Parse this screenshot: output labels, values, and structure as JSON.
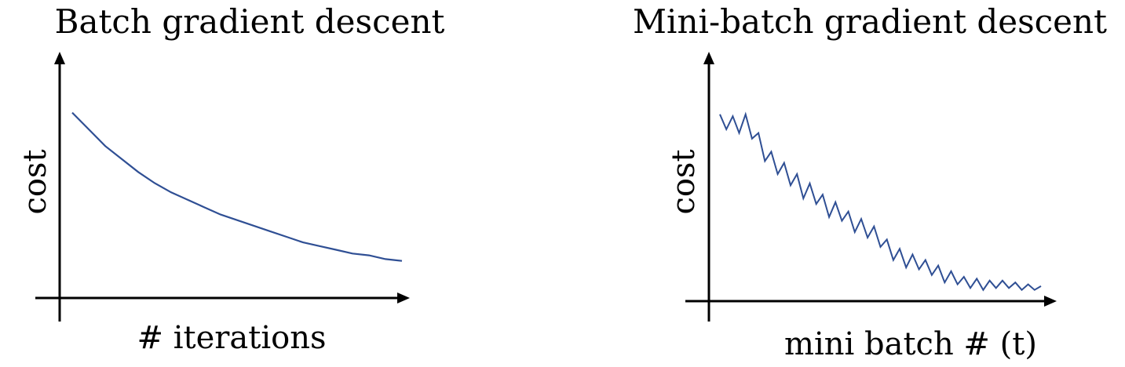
{
  "chart_data": [
    {
      "type": "line",
      "title": "Batch gradient descent",
      "xlabel": "# iterations",
      "ylabel": "cost",
      "axis_ticks": "none",
      "grid": false,
      "line_color": "#2f4f94",
      "x": [
        0,
        5,
        10,
        15,
        20,
        25,
        30,
        35,
        40,
        45,
        50,
        55,
        60,
        65,
        70,
        75,
        80,
        85,
        90,
        95,
        100
      ],
      "series": [
        {
          "values": [
            1.0,
            0.91,
            0.82,
            0.75,
            0.68,
            0.62,
            0.57,
            0.53,
            0.49,
            0.45,
            0.42,
            0.39,
            0.36,
            0.33,
            0.3,
            0.28,
            0.26,
            0.24,
            0.23,
            0.21,
            0.2
          ]
        }
      ],
      "xlim": [
        0,
        100
      ],
      "ylim": [
        0,
        1.1
      ]
    },
    {
      "type": "line",
      "title": "Mini-batch gradient descent",
      "xlabel": "mini batch # (t)",
      "ylabel": "cost",
      "axis_ticks": "none",
      "grid": false,
      "line_color": "#2f4f94",
      "x": [
        0,
        2,
        4,
        6,
        8,
        10,
        12,
        14,
        16,
        18,
        20,
        22,
        24,
        26,
        28,
        30,
        32,
        34,
        36,
        38,
        40,
        42,
        44,
        46,
        48,
        50,
        52,
        54,
        56,
        58,
        60,
        62,
        64,
        66,
        68,
        70,
        72,
        74,
        76,
        78,
        80,
        82,
        84,
        86,
        88,
        90,
        92,
        94,
        96,
        98,
        100
      ],
      "series": [
        {
          "values": [
            1.0,
            0.92,
            0.99,
            0.9,
            1.0,
            0.87,
            0.9,
            0.75,
            0.8,
            0.68,
            0.74,
            0.62,
            0.68,
            0.55,
            0.63,
            0.52,
            0.57,
            0.45,
            0.53,
            0.43,
            0.48,
            0.37,
            0.44,
            0.34,
            0.4,
            0.29,
            0.33,
            0.22,
            0.28,
            0.18,
            0.25,
            0.17,
            0.22,
            0.14,
            0.19,
            0.1,
            0.16,
            0.09,
            0.13,
            0.07,
            0.12,
            0.06,
            0.11,
            0.07,
            0.11,
            0.07,
            0.1,
            0.06,
            0.09,
            0.06,
            0.08
          ]
        }
      ],
      "xlim": [
        0,
        100
      ],
      "ylim": [
        0,
        1.1
      ]
    }
  ]
}
